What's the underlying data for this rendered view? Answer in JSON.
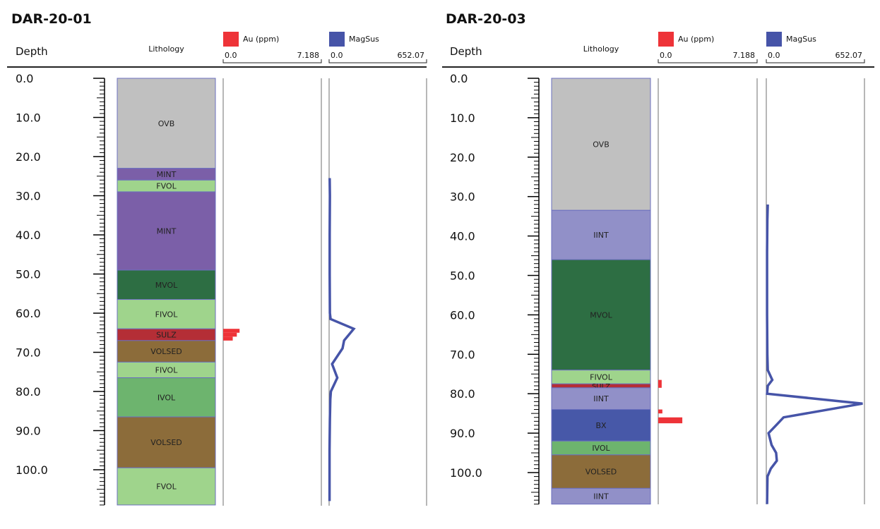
{
  "labels": {
    "depth": "Depth",
    "lithology": "Lithology",
    "au_legend": "Au (ppm)",
    "magsus_legend": "MagSus"
  },
  "colors": {
    "au": "#ee3338",
    "magsus": "#4654a8",
    "axis": "#000000",
    "track_line": "#6f6f6f",
    "litho_border": "#6b6fbf"
  },
  "lithology_colors": {
    "OVB": "#c0c0c0",
    "MINT": "#7b5fa8",
    "FVOL": "#9fd48c",
    "FIVOL": "#9fd48c",
    "MVOL": "#2d6e43",
    "SULZ": "#b42e36",
    "VOLSED": "#8c6c3a",
    "IVOL": "#6db46e",
    "IINT": "#9190c8",
    "BX": "#4758a8"
  },
  "chart_data": [
    {
      "type": "well-log",
      "title": "DAR-20-01",
      "depth_axis": {
        "label": "Depth",
        "ticks": [
          "0.0",
          "10.0",
          "20.0",
          "30.0",
          "40.0",
          "50.0",
          "60.0",
          "70.0",
          "80.0",
          "90.0",
          "100.0"
        ],
        "range": [
          0,
          109
        ]
      },
      "lithology": [
        {
          "from": 0,
          "to": 23,
          "unit": "OVB"
        },
        {
          "from": 23,
          "to": 26,
          "unit": "MINT"
        },
        {
          "from": 26,
          "to": 29,
          "unit": "FVOL"
        },
        {
          "from": 29,
          "to": 49,
          "unit": "MINT"
        },
        {
          "from": 49,
          "to": 56.5,
          "unit": "MVOL"
        },
        {
          "from": 56.5,
          "to": 64,
          "unit": "FIVOL"
        },
        {
          "from": 64,
          "to": 67,
          "unit": "SULZ"
        },
        {
          "from": 67,
          "to": 72.5,
          "unit": "VOLSED"
        },
        {
          "from": 72.5,
          "to": 76.5,
          "unit": "FIVOL"
        },
        {
          "from": 76.5,
          "to": 86.5,
          "unit": "IVOL"
        },
        {
          "from": 86.5,
          "to": 99.5,
          "unit": "VOLSED"
        },
        {
          "from": 99.5,
          "to": 109,
          "unit": "FVOL"
        }
      ],
      "au": {
        "name": "Au (ppm)",
        "range": [
          0.0,
          7.188
        ],
        "range_labels": [
          "0.0",
          "7.188"
        ],
        "intervals": [
          {
            "from": 64,
            "to": 65,
            "value": 1.2
          },
          {
            "from": 65,
            "to": 66,
            "value": 1.0
          },
          {
            "from": 66,
            "to": 67,
            "value": 0.7
          }
        ]
      },
      "magsus": {
        "name": "MagSus",
        "range": [
          0.0,
          652.07
        ],
        "range_labels": [
          "0.0",
          "652.07"
        ],
        "points": [
          [
            25.5,
            4
          ],
          [
            30,
            5
          ],
          [
            40,
            4
          ],
          [
            50,
            4
          ],
          [
            60,
            5
          ],
          [
            61.5,
            10
          ],
          [
            64,
            165
          ],
          [
            67,
            100
          ],
          [
            69,
            90
          ],
          [
            73,
            20
          ],
          [
            76.5,
            55
          ],
          [
            80,
            12
          ],
          [
            82,
            8
          ],
          [
            87,
            5
          ],
          [
            95,
            3
          ],
          [
            105,
            3
          ],
          [
            108,
            3
          ]
        ]
      }
    },
    {
      "type": "well-log",
      "title": "DAR-20-03",
      "depth_axis": {
        "label": "Depth",
        "ticks": [
          "0.0",
          "10.0",
          "20.0",
          "30.0",
          "40.0",
          "50.0",
          "60.0",
          "70.0",
          "80.0",
          "90.0",
          "100.0"
        ],
        "range": [
          0,
          108
        ]
      },
      "lithology": [
        {
          "from": 0,
          "to": 33.5,
          "unit": "OVB"
        },
        {
          "from": 33.5,
          "to": 46,
          "unit": "IINT"
        },
        {
          "from": 46,
          "to": 74,
          "unit": "MVOL"
        },
        {
          "from": 74,
          "to": 77.5,
          "unit": "FIVOL"
        },
        {
          "from": 77.5,
          "to": 78.5,
          "unit": "SULZ"
        },
        {
          "from": 78.5,
          "to": 84,
          "unit": "IINT"
        },
        {
          "from": 84,
          "to": 92,
          "unit": "BX"
        },
        {
          "from": 92,
          "to": 95.5,
          "unit": "IVOL"
        },
        {
          "from": 95.5,
          "to": 104,
          "unit": "VOLSED"
        },
        {
          "from": 104,
          "to": 108,
          "unit": "IINT"
        }
      ],
      "au": {
        "name": "Au (ppm)",
        "range": [
          0.0,
          7.188
        ],
        "range_labels": [
          "0.0",
          "7.188"
        ],
        "intervals": [
          {
            "from": 76.5,
            "to": 78.5,
            "value": 0.25
          },
          {
            "from": 84,
            "to": 85,
            "value": 0.3
          },
          {
            "from": 86,
            "to": 87.5,
            "value": 1.75
          }
        ]
      },
      "magsus": {
        "name": "MagSus",
        "range": [
          0.0,
          652.07
        ],
        "range_labels": [
          "0.0",
          "652.07"
        ],
        "points": [
          [
            32,
            10
          ],
          [
            36,
            7
          ],
          [
            44,
            5
          ],
          [
            60,
            5
          ],
          [
            70,
            7
          ],
          [
            74,
            10
          ],
          [
            76.5,
            40
          ],
          [
            78,
            10
          ],
          [
            80,
            5
          ],
          [
            82.5,
            640
          ],
          [
            86,
            115
          ],
          [
            88,
            65
          ],
          [
            90,
            15
          ],
          [
            93,
            35
          ],
          [
            95,
            65
          ],
          [
            97,
            70
          ],
          [
            99,
            30
          ],
          [
            101,
            8
          ],
          [
            108,
            5
          ]
        ]
      }
    }
  ]
}
